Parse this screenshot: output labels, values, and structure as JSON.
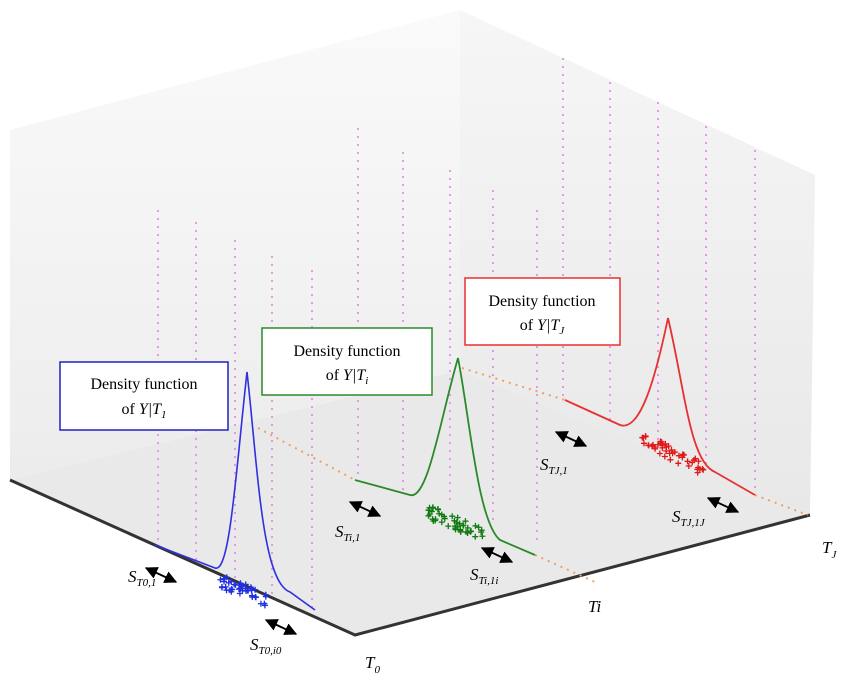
{
  "boxes": [
    {
      "line1": "Density function",
      "of": "of",
      "var": "Y|T",
      "sub": "1"
    },
    {
      "line1": "Density function",
      "of": "of",
      "var": "Y|T",
      "sub": "i"
    },
    {
      "line1": "Density function",
      "of": "of",
      "var": "Y|T",
      "sub": "J"
    }
  ],
  "labels": [
    {
      "main": "S",
      "sub": "T0,1"
    },
    {
      "main": "S",
      "sub": "T0,i0"
    },
    {
      "main": "S",
      "sub": "Ti,1"
    },
    {
      "main": "S",
      "sub": "Ti,1i"
    },
    {
      "main": "S",
      "sub": "TJ,1"
    },
    {
      "main": "S",
      "sub": "TJ,1J"
    }
  ],
  "axes": [
    {
      "main": "T",
      "sub": "0"
    },
    {
      "main": "Ti"
    },
    {
      "main": "T",
      "sub": "J"
    }
  ]
}
